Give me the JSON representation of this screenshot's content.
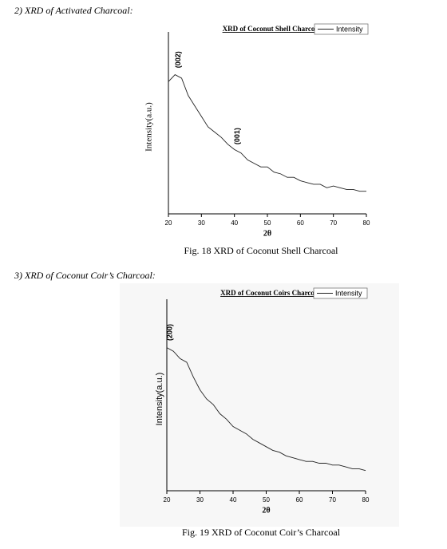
{
  "document": {
    "sections": [
      {
        "heading": "2)  XRD of Activated Charcoal:",
        "caption": "Fig. 18 XRD of Coconut Shell Charcoal"
      },
      {
        "heading": "3)  XRD of Coconut Coir’s Charcoal:",
        "caption": "Fig. 19 XRD of Coconut Coir’s Charcoal"
      }
    ]
  },
  "chart_data": [
    {
      "type": "line",
      "title": "XRD of Coconut Shell Charcoal",
      "x_label": "2θ",
      "y_label": "Intensity(a.u.)",
      "legend": "upper right",
      "x": [
        20,
        22,
        24,
        26,
        28,
        30,
        32,
        34,
        36,
        38,
        40,
        42,
        44,
        46,
        48,
        50,
        52,
        54,
        56,
        58,
        60,
        62,
        64,
        66,
        68,
        70,
        72,
        74,
        76,
        78,
        80
      ],
      "series": [
        {
          "name": "Intensity",
          "color": "#222222",
          "values": [
            76,
            80,
            78,
            68,
            62,
            56,
            50,
            47,
            44,
            40,
            37,
            35,
            31,
            29,
            27,
            27,
            24,
            23,
            21,
            21,
            19,
            18,
            17,
            17,
            15,
            16,
            15,
            14,
            14,
            13,
            13
          ]
        }
      ],
      "xlim": [
        20,
        80
      ],
      "ylim": [
        0,
        100
      ],
      "xticks": [
        20,
        30,
        40,
        50,
        60,
        70,
        80
      ],
      "annotations": [
        {
          "text": "(002)",
          "x": 23,
          "y": 82
        },
        {
          "text": "(001)",
          "x": 41,
          "y": 38
        }
      ]
    },
    {
      "type": "line",
      "title": "XRD of Coconut Coirs Charcoal",
      "x_label": "2θ",
      "y_label": "Intensity(a.u.)",
      "legend": "upper right",
      "x": [
        20,
        22,
        24,
        26,
        28,
        30,
        32,
        34,
        36,
        38,
        40,
        42,
        44,
        46,
        48,
        50,
        52,
        54,
        56,
        58,
        60,
        62,
        64,
        66,
        68,
        70,
        72,
        74,
        76,
        78,
        80
      ],
      "series": [
        {
          "name": "Intensity",
          "color": "#222222",
          "values": [
            78,
            76,
            72,
            70,
            62,
            55,
            50,
            47,
            42,
            39,
            35,
            33,
            31,
            28,
            26,
            24,
            22,
            21,
            19,
            18,
            17,
            16,
            16,
            15,
            15,
            14,
            14,
            13,
            12,
            12,
            11
          ]
        }
      ],
      "xlim": [
        20,
        80
      ],
      "ylim": [
        0,
        100
      ],
      "xticks": [
        20,
        30,
        40,
        50,
        60,
        70,
        80
      ],
      "annotations": [
        {
          "text": "(200)",
          "x": 21,
          "y": 80
        }
      ]
    }
  ]
}
